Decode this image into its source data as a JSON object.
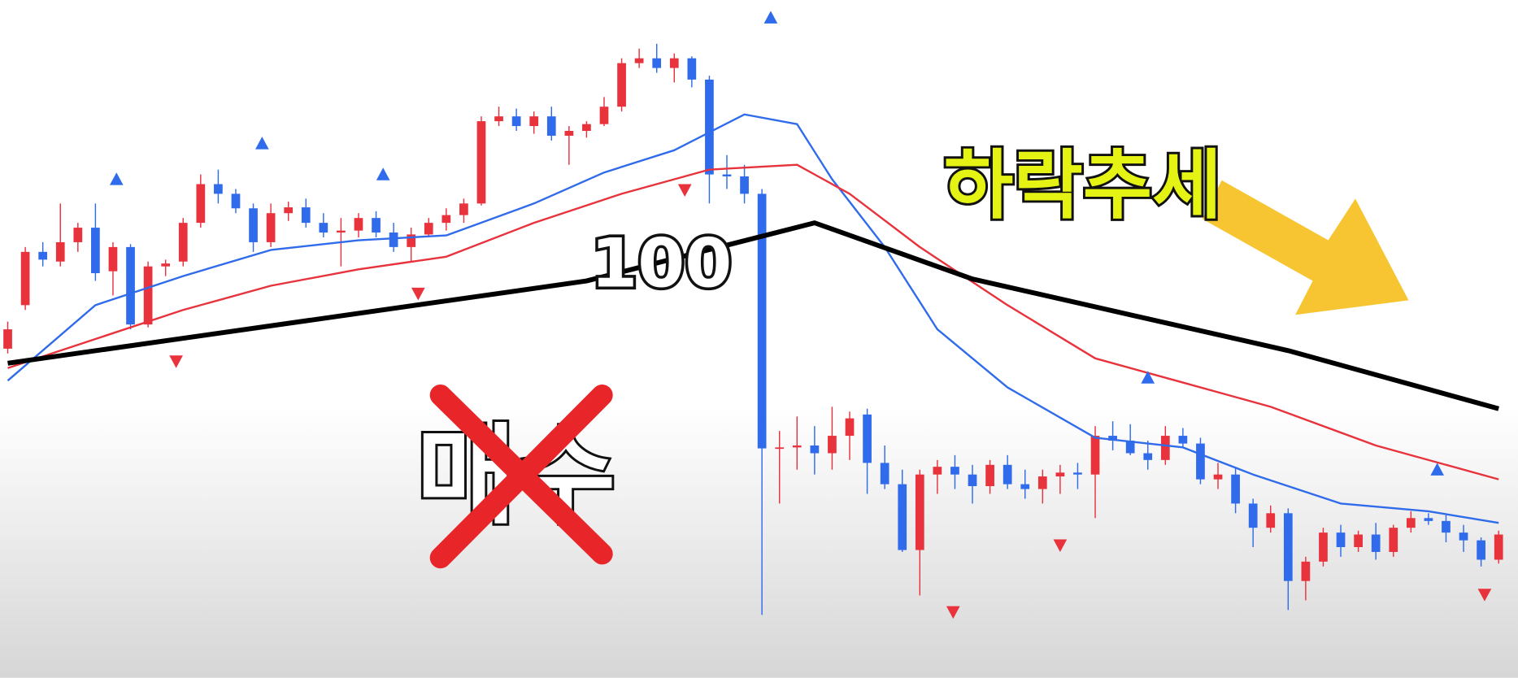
{
  "chart_data": {
    "type": "candlestick",
    "ylim": [
      0,
      700
    ],
    "xlim": [
      0,
      85
    ],
    "up_color": "#e8323c",
    "down_color": "#2f6bea",
    "open": [
      340,
      385,
      440,
      430,
      450,
      465,
      420,
      445,
      365,
      425,
      430,
      470,
      510,
      500,
      485,
      450,
      480,
      486,
      470,
      460,
      462,
      475,
      460,
      445,
      458,
      470,
      478,
      490,
      575,
      580,
      570,
      580,
      560,
      565,
      572,
      590,
      635,
      640,
      630,
      640,
      618,
      520,
      518,
      500,
      237,
      238,
      240,
      232,
      250,
      272,
      222,
      200,
      132,
      210,
      218,
      210,
      198,
      220,
      200,
      195,
      208,
      212,
      210,
      250,
      245,
      232,
      225,
      250,
      242,
      205,
      210,
      180,
      155,
      170,
      100,
      120,
      150,
      135,
      148,
      130,
      155,
      165,
      162,
      150,
      142,
      122
    ],
    "high": [
      368,
      445,
      450,
      490,
      470,
      490,
      450,
      448,
      430,
      432,
      475,
      520,
      525,
      505,
      490,
      490,
      492,
      495,
      480,
      475,
      480,
      482,
      470,
      465,
      475,
      485,
      495,
      580,
      590,
      588,
      585,
      590,
      570,
      575,
      600,
      640,
      650,
      655,
      645,
      642,
      622,
      540,
      530,
      505,
      255,
      270,
      260,
      280,
      275,
      278,
      240,
      215,
      215,
      225,
      230,
      220,
      225,
      230,
      215,
      215,
      220,
      222,
      260,
      265,
      262,
      245,
      260,
      258,
      248,
      222,
      218,
      185,
      178,
      175,
      125,
      155,
      158,
      152,
      160,
      158,
      172,
      170,
      168,
      158,
      145,
      152
    ],
    "low": [
      335,
      380,
      425,
      425,
      440,
      410,
      395,
      360,
      362,
      415,
      425,
      465,
      490,
      480,
      440,
      445,
      472,
      465,
      455,
      425,
      455,
      455,
      440,
      430,
      455,
      462,
      470,
      488,
      570,
      565,
      562,
      555,
      530,
      558,
      570,
      585,
      630,
      625,
      615,
      610,
      490,
      505,
      490,
      65,
      180,
      215,
      210,
      215,
      225,
      190,
      195,
      130,
      85,
      190,
      195,
      180,
      190,
      195,
      185,
      180,
      190,
      195,
      165,
      235,
      230,
      215,
      220,
      238,
      200,
      195,
      170,
      135,
      150,
      70,
      80,
      115,
      125,
      130,
      122,
      125,
      150,
      158,
      140,
      130,
      115,
      118
    ],
    "close": [
      360,
      440,
      432,
      450,
      465,
      418,
      445,
      365,
      425,
      428,
      470,
      510,
      500,
      485,
      450,
      480,
      486,
      470,
      460,
      462,
      475,
      460,
      445,
      458,
      470,
      478,
      490,
      575,
      580,
      570,
      580,
      560,
      565,
      572,
      590,
      635,
      640,
      630,
      640,
      618,
      520,
      518,
      500,
      237,
      238,
      240,
      232,
      250,
      268,
      222,
      200,
      132,
      210,
      218,
      210,
      198,
      220,
      200,
      195,
      208,
      212,
      210,
      250,
      245,
      232,
      225,
      250,
      242,
      205,
      210,
      180,
      155,
      170,
      100,
      120,
      150,
      135,
      148,
      130,
      155,
      165,
      162,
      150,
      142,
      122,
      148
    ],
    "lines": [
      {
        "color": "#2f6bea",
        "x": [
          0,
          5,
          10,
          15,
          20,
          25,
          30,
          34,
          38,
          42,
          45,
          47,
          50,
          53,
          57,
          62,
          67,
          71,
          76,
          81,
          85
        ],
        "values": [
          307,
          385,
          415,
          442,
          452,
          457,
          490,
          522,
          545,
          582,
          572,
          515,
          445,
          360,
          300,
          248,
          238,
          210,
          180,
          172,
          160
        ]
      },
      {
        "color": "#e8323c",
        "x": [
          0,
          5,
          10,
          15,
          20,
          25,
          30,
          35,
          40,
          45,
          48,
          52,
          57,
          62,
          67,
          72,
          78,
          85
        ],
        "values": [
          320,
          350,
          380,
          405,
          422,
          435,
          470,
          500,
          525,
          530,
          500,
          445,
          385,
          330,
          305,
          280,
          240,
          205
        ]
      },
      {
        "color": "#000000",
        "x": [
          0,
          33,
          46,
          55,
          73,
          85
        ],
        "values": [
          325,
          410,
          470,
          412,
          338,
          278
        ]
      }
    ],
    "signals": [
      {
        "direction": "up",
        "color": "#2f6bea",
        "x": [
          6.2,
          14.5,
          21.4,
          43.5,
          65,
          81.5
        ],
        "values": [
          515,
          552,
          520,
          682,
          310,
          215
        ]
      },
      {
        "direction": "down",
        "color": "#e8323c",
        "x": [
          9.6,
          23.4,
          38.6,
          53.9,
          60,
          84.2
        ],
        "values": [
          327,
          397,
          504,
          68,
          137,
          86
        ]
      }
    ],
    "annotations": {
      "ma_label": "100",
      "trend": "하락추세",
      "crossed": "매수"
    }
  }
}
